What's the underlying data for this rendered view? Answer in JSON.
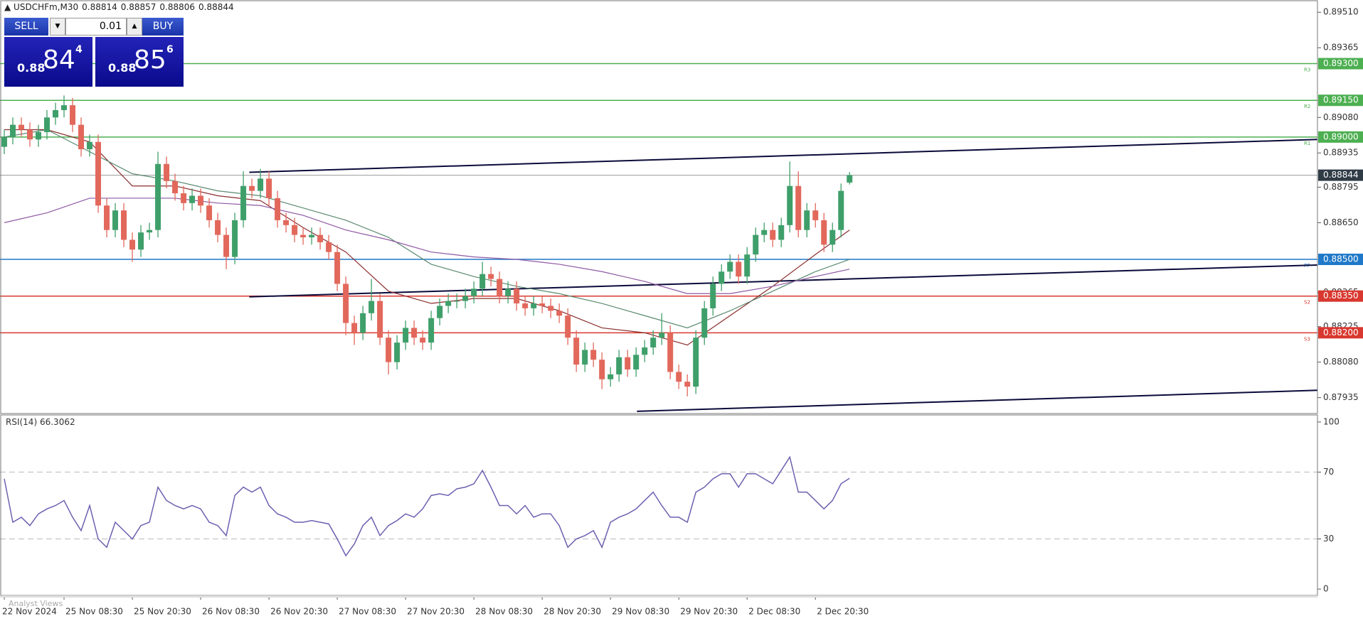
{
  "header": {
    "symbol": "USDCHFm,M30"
  },
  "trade_panel": {
    "sell": "SELL",
    "buy": "BUY",
    "lot": "0.01",
    "bid": {
      "big": "0.88",
      "main": "84",
      "small": "4"
    },
    "ask": {
      "big": "0.88",
      "main": "85",
      "small": "6"
    }
  },
  "footer": {
    "note": "Analyst Views"
  },
  "chart_data": [
    {
      "type": "candlestick",
      "categories": [
        "22 Nov 2024",
        null,
        null,
        null,
        null,
        null,
        null,
        "25 Nov 08:30",
        null,
        null,
        null,
        null,
        null,
        null,
        null,
        "25 Nov 20:30",
        null,
        null,
        null,
        null,
        null,
        null,
        null,
        "26 Nov 08:30",
        null,
        null,
        null,
        null,
        null,
        null,
        null,
        "26 Nov 20:30",
        null,
        null,
        null,
        null,
        null,
        null,
        null,
        "27 Nov 08:30",
        null,
        null,
        null,
        null,
        null,
        null,
        null,
        "27 Nov 20:30",
        null,
        null,
        null,
        null,
        null,
        null,
        null,
        "28 Nov 08:30",
        null,
        null,
        null,
        null,
        null,
        null,
        null,
        "28 Nov 20:30",
        null,
        null,
        null,
        null,
        null,
        null,
        null,
        "29 Nov 08:30",
        null,
        null,
        null,
        null,
        null,
        null,
        null,
        "29 Nov 20:30",
        null,
        null,
        null,
        null,
        null,
        null,
        null,
        "2 Dec 08:30",
        null,
        null,
        null,
        null,
        null,
        null,
        null,
        "2 Dec 20:30",
        null,
        null,
        null,
        null
      ],
      "open": [
        0.8896,
        0.89,
        0.8905,
        0.8903,
        0.8899,
        0.8902,
        0.8908,
        0.8911,
        0.8913,
        0.8905,
        0.8895,
        0.8898,
        0.8872,
        0.8862,
        0.887,
        0.8858,
        0.8854,
        0.8861,
        0.8862,
        0.8889,
        0.8882,
        0.8877,
        0.8873,
        0.8876,
        0.8872,
        0.8866,
        0.886,
        0.8851,
        0.8866,
        0.888,
        0.8878,
        0.8883,
        0.8875,
        0.8866,
        0.8864,
        0.886,
        0.8859,
        0.886,
        0.8857,
        0.8853,
        0.884,
        0.8824,
        0.882,
        0.8828,
        0.8833,
        0.8818,
        0.8808,
        0.8816,
        0.8822,
        0.8818,
        0.8816,
        0.8826,
        0.8831,
        0.8833,
        0.8833,
        0.8835,
        0.8838,
        0.8844,
        0.8842,
        0.8835,
        0.8838,
        0.8832,
        0.883,
        0.8832,
        0.8831,
        0.8829,
        0.8827,
        0.8818,
        0.8807,
        0.8813,
        0.8809,
        0.8801,
        0.8803,
        0.881,
        0.8805,
        0.8811,
        0.8814,
        0.8818,
        0.882,
        0.8804,
        0.88,
        0.8798,
        0.8818,
        0.883,
        0.884,
        0.8845,
        0.8849,
        0.8843,
        0.8852,
        0.886,
        0.8862,
        0.8858,
        0.8864,
        0.888,
        0.8862,
        0.887,
        0.8866,
        0.8856,
        0.8862,
        0.88814
      ],
      "high": [
        0.8903,
        0.8908,
        0.8908,
        0.8906,
        0.8905,
        0.8911,
        0.8914,
        0.8917,
        0.8916,
        0.8908,
        0.8901,
        0.8901,
        0.8875,
        0.8873,
        0.8873,
        0.8861,
        0.8864,
        0.8865,
        0.8894,
        0.8892,
        0.8885,
        0.888,
        0.8879,
        0.8879,
        0.8875,
        0.8869,
        0.8863,
        0.8869,
        0.8886,
        0.8883,
        0.8887,
        0.8886,
        0.8878,
        0.8869,
        0.8867,
        0.8863,
        0.8863,
        0.8863,
        0.886,
        0.8856,
        0.8843,
        0.8827,
        0.8831,
        0.8842,
        0.8836,
        0.8821,
        0.8819,
        0.8825,
        0.8825,
        0.8821,
        0.8829,
        0.8834,
        0.8836,
        0.8836,
        0.8838,
        0.8841,
        0.8849,
        0.8847,
        0.8845,
        0.8841,
        0.8841,
        0.8835,
        0.8835,
        0.8835,
        0.8834,
        0.8832,
        0.883,
        0.8821,
        0.8816,
        0.8816,
        0.8812,
        0.8806,
        0.8813,
        0.8813,
        0.8814,
        0.8817,
        0.8821,
        0.8828,
        0.8823,
        0.8807,
        0.8803,
        0.8821,
        0.8833,
        0.8843,
        0.8848,
        0.8852,
        0.8852,
        0.8855,
        0.8863,
        0.8865,
        0.8865,
        0.8867,
        0.889,
        0.8886,
        0.8873,
        0.8873,
        0.8869,
        0.8865,
        0.8881,
        0.88857
      ],
      "low": [
        0.8893,
        0.8897,
        0.89,
        0.8896,
        0.8896,
        0.8899,
        0.8905,
        0.8908,
        0.8902,
        0.8892,
        0.8892,
        0.8869,
        0.8859,
        0.8859,
        0.8855,
        0.8849,
        0.8851,
        0.8858,
        0.8859,
        0.8879,
        0.8874,
        0.887,
        0.887,
        0.8869,
        0.8863,
        0.8857,
        0.8846,
        0.8848,
        0.8863,
        0.8875,
        0.8875,
        0.8872,
        0.8863,
        0.8861,
        0.8857,
        0.8856,
        0.8856,
        0.8854,
        0.885,
        0.8837,
        0.8819,
        0.8815,
        0.8817,
        0.8825,
        0.8815,
        0.8803,
        0.8805,
        0.8813,
        0.8815,
        0.8813,
        0.8813,
        0.8823,
        0.8828,
        0.883,
        0.883,
        0.8832,
        0.8835,
        0.8839,
        0.8832,
        0.8832,
        0.8829,
        0.8827,
        0.8827,
        0.8828,
        0.8826,
        0.8824,
        0.8815,
        0.8804,
        0.8804,
        0.8806,
        0.8797,
        0.8798,
        0.88,
        0.8802,
        0.8802,
        0.8808,
        0.8811,
        0.8815,
        0.8801,
        0.8797,
        0.8794,
        0.8795,
        0.8815,
        0.8827,
        0.8837,
        0.8842,
        0.884,
        0.884,
        0.8849,
        0.8857,
        0.8855,
        0.8855,
        0.8861,
        0.8859,
        0.8859,
        0.8863,
        0.8853,
        0.8853,
        0.8859,
        0.88806
      ],
      "close": [
        0.89,
        0.8905,
        0.8903,
        0.8899,
        0.8902,
        0.8908,
        0.8911,
        0.8913,
        0.8905,
        0.8895,
        0.8898,
        0.8872,
        0.8862,
        0.887,
        0.8858,
        0.8854,
        0.8861,
        0.8862,
        0.8889,
        0.8882,
        0.8877,
        0.8873,
        0.8876,
        0.8872,
        0.8866,
        0.886,
        0.8851,
        0.8866,
        0.888,
        0.8878,
        0.8883,
        0.8875,
        0.8866,
        0.8864,
        0.886,
        0.8859,
        0.886,
        0.8857,
        0.8853,
        0.884,
        0.8824,
        0.882,
        0.8828,
        0.8833,
        0.8818,
        0.8808,
        0.8816,
        0.8822,
        0.8818,
        0.8816,
        0.8826,
        0.8831,
        0.8833,
        0.8833,
        0.8835,
        0.8838,
        0.8844,
        0.8842,
        0.8835,
        0.8838,
        0.8832,
        0.883,
        0.8832,
        0.8831,
        0.8829,
        0.8827,
        0.8818,
        0.8807,
        0.8813,
        0.8809,
        0.8801,
        0.8803,
        0.881,
        0.8805,
        0.8811,
        0.8814,
        0.8818,
        0.882,
        0.8804,
        0.88,
        0.8798,
        0.8818,
        0.883,
        0.884,
        0.8845,
        0.8849,
        0.8843,
        0.8852,
        0.886,
        0.8862,
        0.8858,
        0.8864,
        0.888,
        0.8862,
        0.887,
        0.8866,
        0.8856,
        0.8862,
        0.8878,
        0.88844
      ],
      "up_color": "#3f9f6a",
      "down_color": "#e2685c",
      "last_price_color": "#2f3b45",
      "overlays": [
        {
          "color": "#8b2e2e",
          "x": [
            0,
            5,
            10,
            15,
            20,
            25,
            30,
            35,
            40,
            45,
            50,
            55,
            60,
            65,
            70,
            75,
            80,
            85,
            90,
            95,
            99
          ],
          "values": [
            0.8903,
            0.8903,
            0.8898,
            0.888,
            0.888,
            0.8876,
            0.8874,
            0.8863,
            0.8853,
            0.8837,
            0.8832,
            0.8834,
            0.8834,
            0.8829,
            0.8822,
            0.882,
            0.8815,
            0.8827,
            0.8839,
            0.8852,
            0.8862
          ]
        },
        {
          "color": "#5a8a70",
          "x": [
            0,
            5,
            10,
            15,
            20,
            25,
            30,
            35,
            40,
            45,
            50,
            55,
            60,
            65,
            70,
            75,
            80,
            85,
            90,
            95,
            99
          ],
          "values": [
            0.89,
            0.8903,
            0.8894,
            0.8885,
            0.8882,
            0.8878,
            0.8876,
            0.8871,
            0.8866,
            0.8859,
            0.8848,
            0.8843,
            0.8839,
            0.8836,
            0.8832,
            0.8827,
            0.8822,
            0.8829,
            0.8837,
            0.8845,
            0.885
          ]
        },
        {
          "color": "#8e57a3",
          "x": [
            0,
            5,
            10,
            15,
            20,
            25,
            30,
            35,
            40,
            45,
            50,
            55,
            60,
            65,
            70,
            75,
            80,
            85,
            90,
            95,
            99
          ],
          "values": [
            0.8865,
            0.8869,
            0.8875,
            0.8875,
            0.8875,
            0.8873,
            0.8872,
            0.8868,
            0.8862,
            0.8858,
            0.8853,
            0.8851,
            0.885,
            0.8848,
            0.8845,
            0.8841,
            0.8836,
            0.8836,
            0.8839,
            0.8843,
            0.8846
          ]
        }
      ],
      "levels": [
        {
          "value": 0.893,
          "label": "0.89300",
          "tag": "R3",
          "color": "#4caf50"
        },
        {
          "value": 0.8915,
          "label": "0.89150",
          "tag": "R2",
          "color": "#4caf50"
        },
        {
          "value": 0.89,
          "label": "0.89000",
          "tag": "R1",
          "color": "#4caf50"
        },
        {
          "value": 0.885,
          "label": "0.88500",
          "tag": "PP",
          "color": "#1f78c8"
        },
        {
          "value": 0.8835,
          "label": "0.88350",
          "tag": "S2",
          "color": "#d8382f"
        },
        {
          "value": 0.882,
          "label": "0.88200",
          "tag": "S3",
          "color": "#d8382f"
        }
      ],
      "trendlines": [
        {
          "color": "#0a0a3a",
          "x": [
            28.7,
            153.8
          ],
          "values": [
            0.88856,
            0.8899
          ]
        },
        {
          "color": "#0a0a3a",
          "x": [
            28.7,
            153.8
          ],
          "values": [
            0.88347,
            0.88477
          ]
        },
        {
          "color": "#0a0a3a",
          "x": [
            74.1,
            153.8
          ],
          "values": [
            0.87879,
            0.87965
          ]
        }
      ],
      "xlim": [
        -0.5,
        153.8
      ],
      "ylim": [
        0.8787,
        0.8956
      ],
      "yticks": [
        {
          "value": 0.8951,
          "label": "0.89510"
        },
        {
          "value": 0.89365,
          "label": "0.89365"
        },
        {
          "value": 0.8908,
          "label": "0.89080"
        },
        {
          "value": 0.88935,
          "label": "0.88935"
        },
        {
          "value": 0.88795,
          "label": "0.88795"
        },
        {
          "value": 0.8865,
          "label": "0.88650"
        },
        {
          "value": 0.88365,
          "label": "0.88365"
        },
        {
          "value": 0.88225,
          "label": "0.88225"
        },
        {
          "value": 0.8808,
          "label": "0.88080"
        },
        {
          "value": 0.87935,
          "label": "0.87935"
        }
      ],
      "grid": false
    },
    {
      "type": "line",
      "title": "RSI(14)",
      "series": [
        {
          "color": "#6f5fb0",
          "values": [
            66,
            40,
            43,
            38,
            45,
            48,
            50,
            53,
            43,
            35,
            50,
            30,
            25,
            40,
            35,
            30,
            38,
            40,
            61,
            53,
            50,
            48,
            50,
            48,
            40,
            38,
            32,
            56,
            61,
            58,
            61,
            50,
            45,
            43,
            40,
            40,
            41,
            40,
            39,
            30,
            20,
            27,
            38,
            43,
            32,
            38,
            41,
            45,
            43,
            48,
            56,
            57,
            56,
            60,
            61,
            63,
            71,
            61,
            50,
            50,
            45,
            50,
            43,
            45,
            45,
            38,
            25,
            30,
            32,
            35,
            25,
            40,
            43,
            45,
            48,
            53,
            58,
            50,
            43,
            43,
            40,
            58,
            61,
            66,
            69,
            69,
            61,
            69,
            69,
            66,
            63,
            71,
            79,
            58,
            58,
            53,
            48,
            53,
            63,
            66.3062
          ]
        }
      ],
      "xlim": [
        -0.5,
        153.8
      ],
      "ylim": [
        -3.8,
        104.2
      ],
      "yticks": [
        100,
        70,
        30,
        0
      ],
      "levels": [
        70,
        30
      ]
    }
  ]
}
